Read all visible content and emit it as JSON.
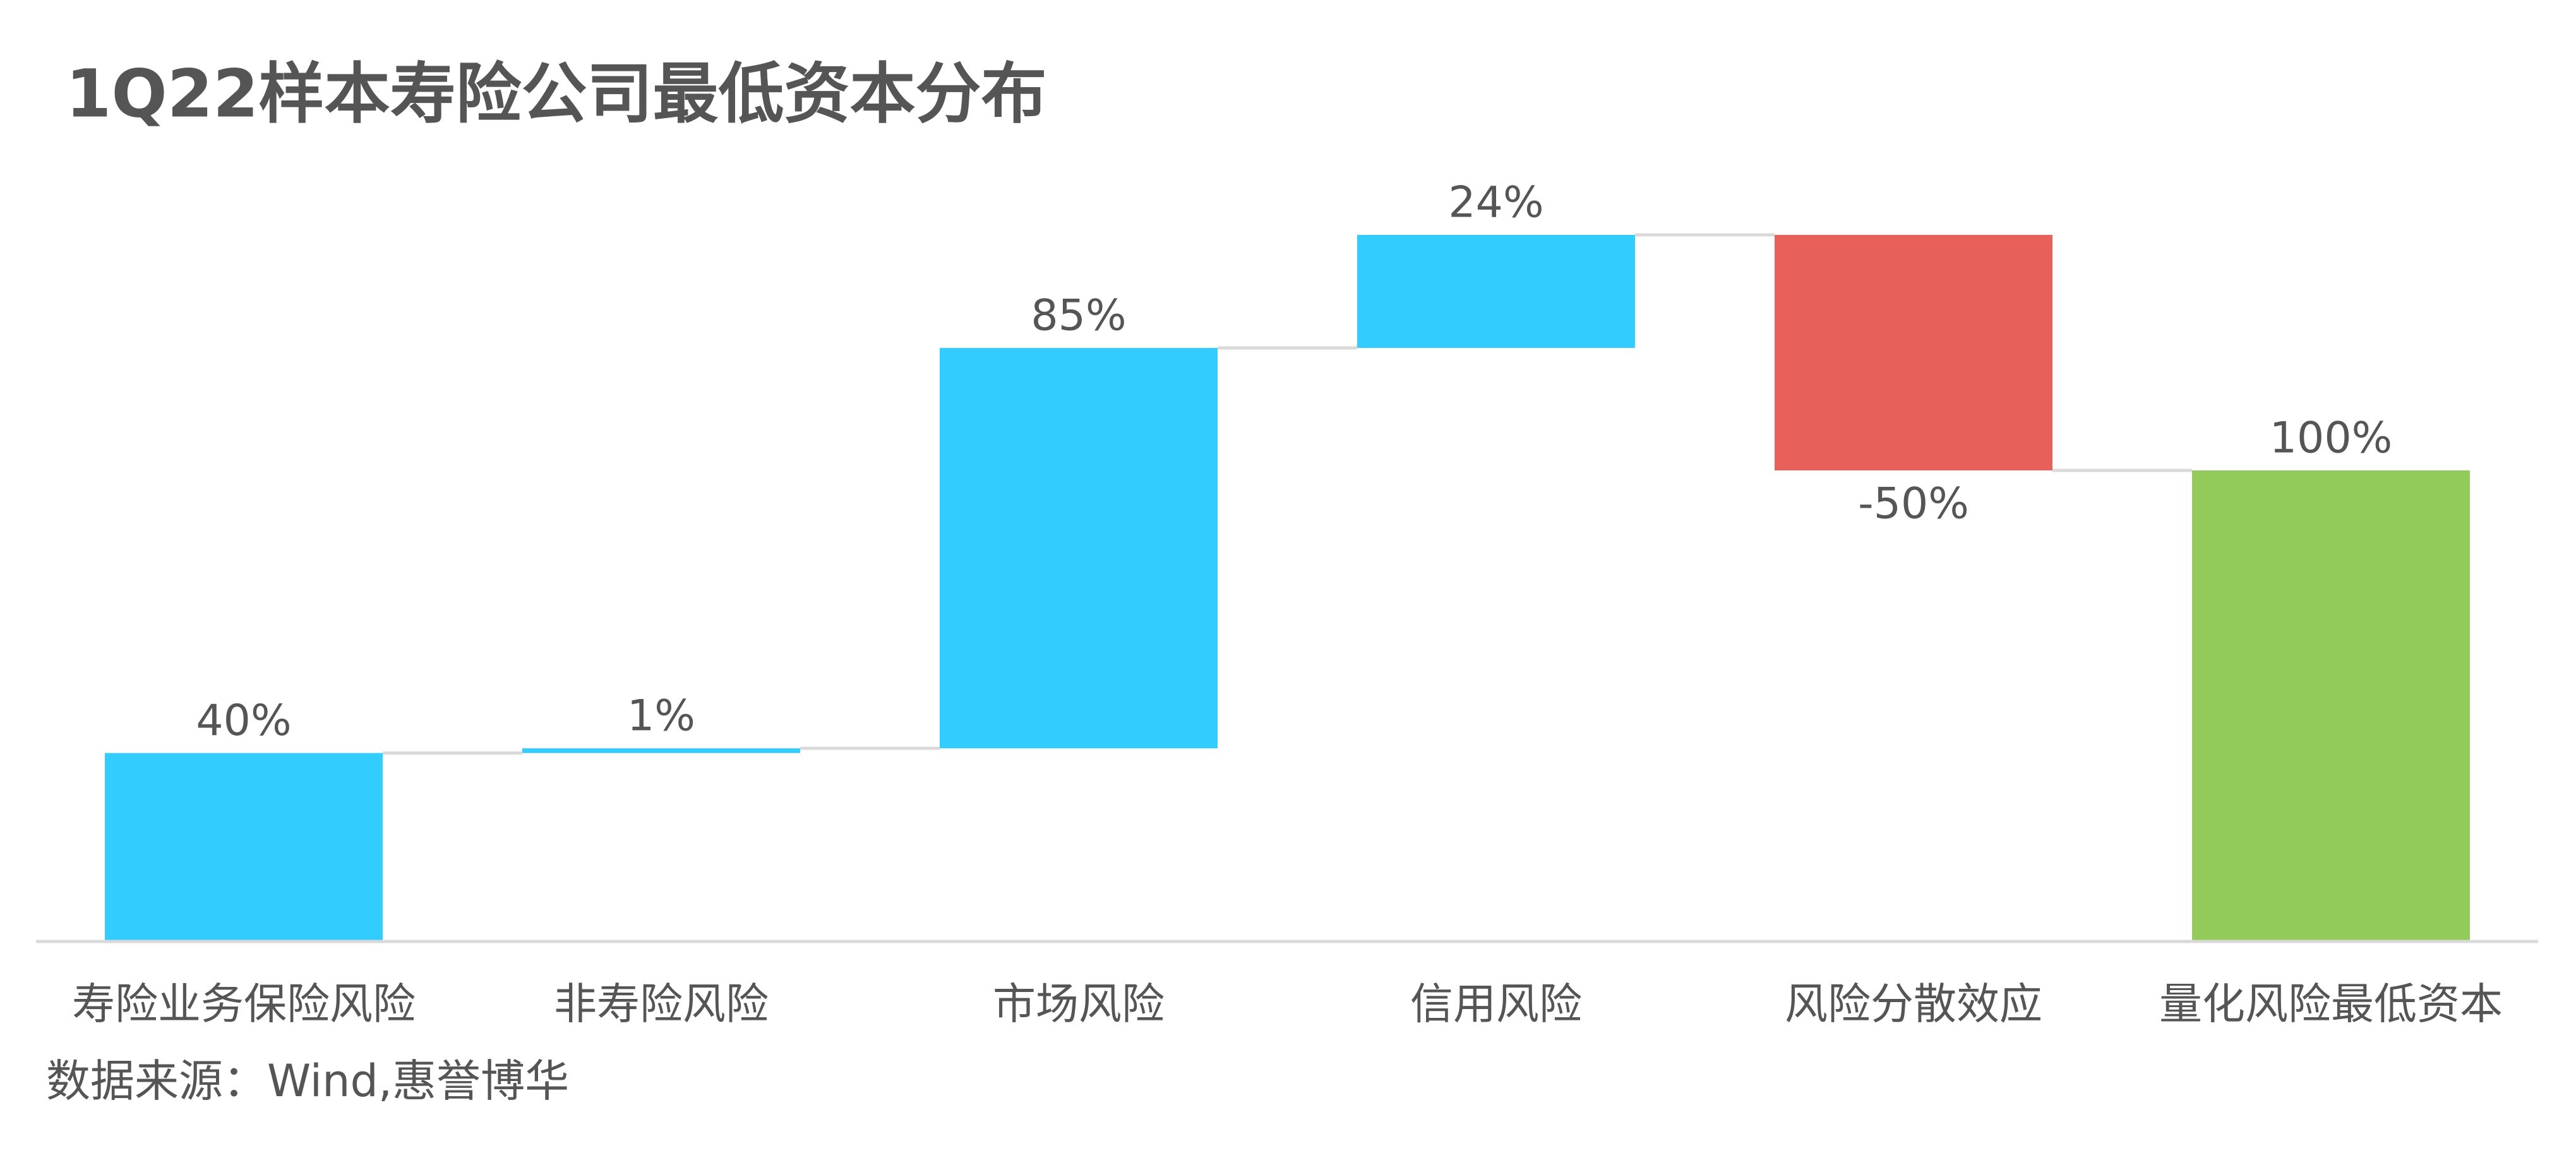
{
  "chart_data": {
    "type": "waterfall",
    "title": "1Q22样本寿险公司最低资本分布",
    "categories": [
      "寿险业务保险风险",
      "非寿险风险",
      "市场风险",
      "信用风险",
      "风险分散效应",
      "量化风险最低资本"
    ],
    "values": [
      40,
      1,
      85,
      24,
      -50,
      100
    ],
    "value_labels": [
      "40%",
      "1%",
      "85%",
      "24%",
      "-50%",
      "100%"
    ],
    "colors": [
      "#33ccff",
      "#33ccff",
      "#33ccff",
      "#33ccff",
      "#e8605a",
      "#92cb5a"
    ],
    "source": "数据来源：Wind,惠誉博华"
  }
}
